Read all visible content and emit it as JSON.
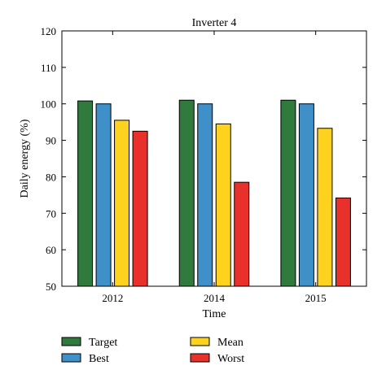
{
  "chart_data": {
    "type": "bar",
    "title": "Inverter 4",
    "xlabel": "Time",
    "ylabel": "Daily energy (%)",
    "categories": [
      "2012",
      "2014",
      "2015"
    ],
    "ylim": [
      50,
      120
    ],
    "yticks": [
      50,
      60,
      70,
      80,
      90,
      100,
      110,
      120
    ],
    "grid": false,
    "legend_position": "bottom",
    "series": [
      {
        "name": "Target",
        "color": "#2f7a3c",
        "values": [
          100.8,
          101.0,
          101.0
        ]
      },
      {
        "name": "Best",
        "color": "#3f8fc8",
        "values": [
          100.0,
          100.0,
          100.0
        ]
      },
      {
        "name": "Mean",
        "color": "#ffd21f",
        "values": [
          95.5,
          94.5,
          93.3
        ]
      },
      {
        "name": "Worst",
        "color": "#e8312a",
        "values": [
          92.5,
          78.5,
          74.2
        ]
      }
    ]
  }
}
